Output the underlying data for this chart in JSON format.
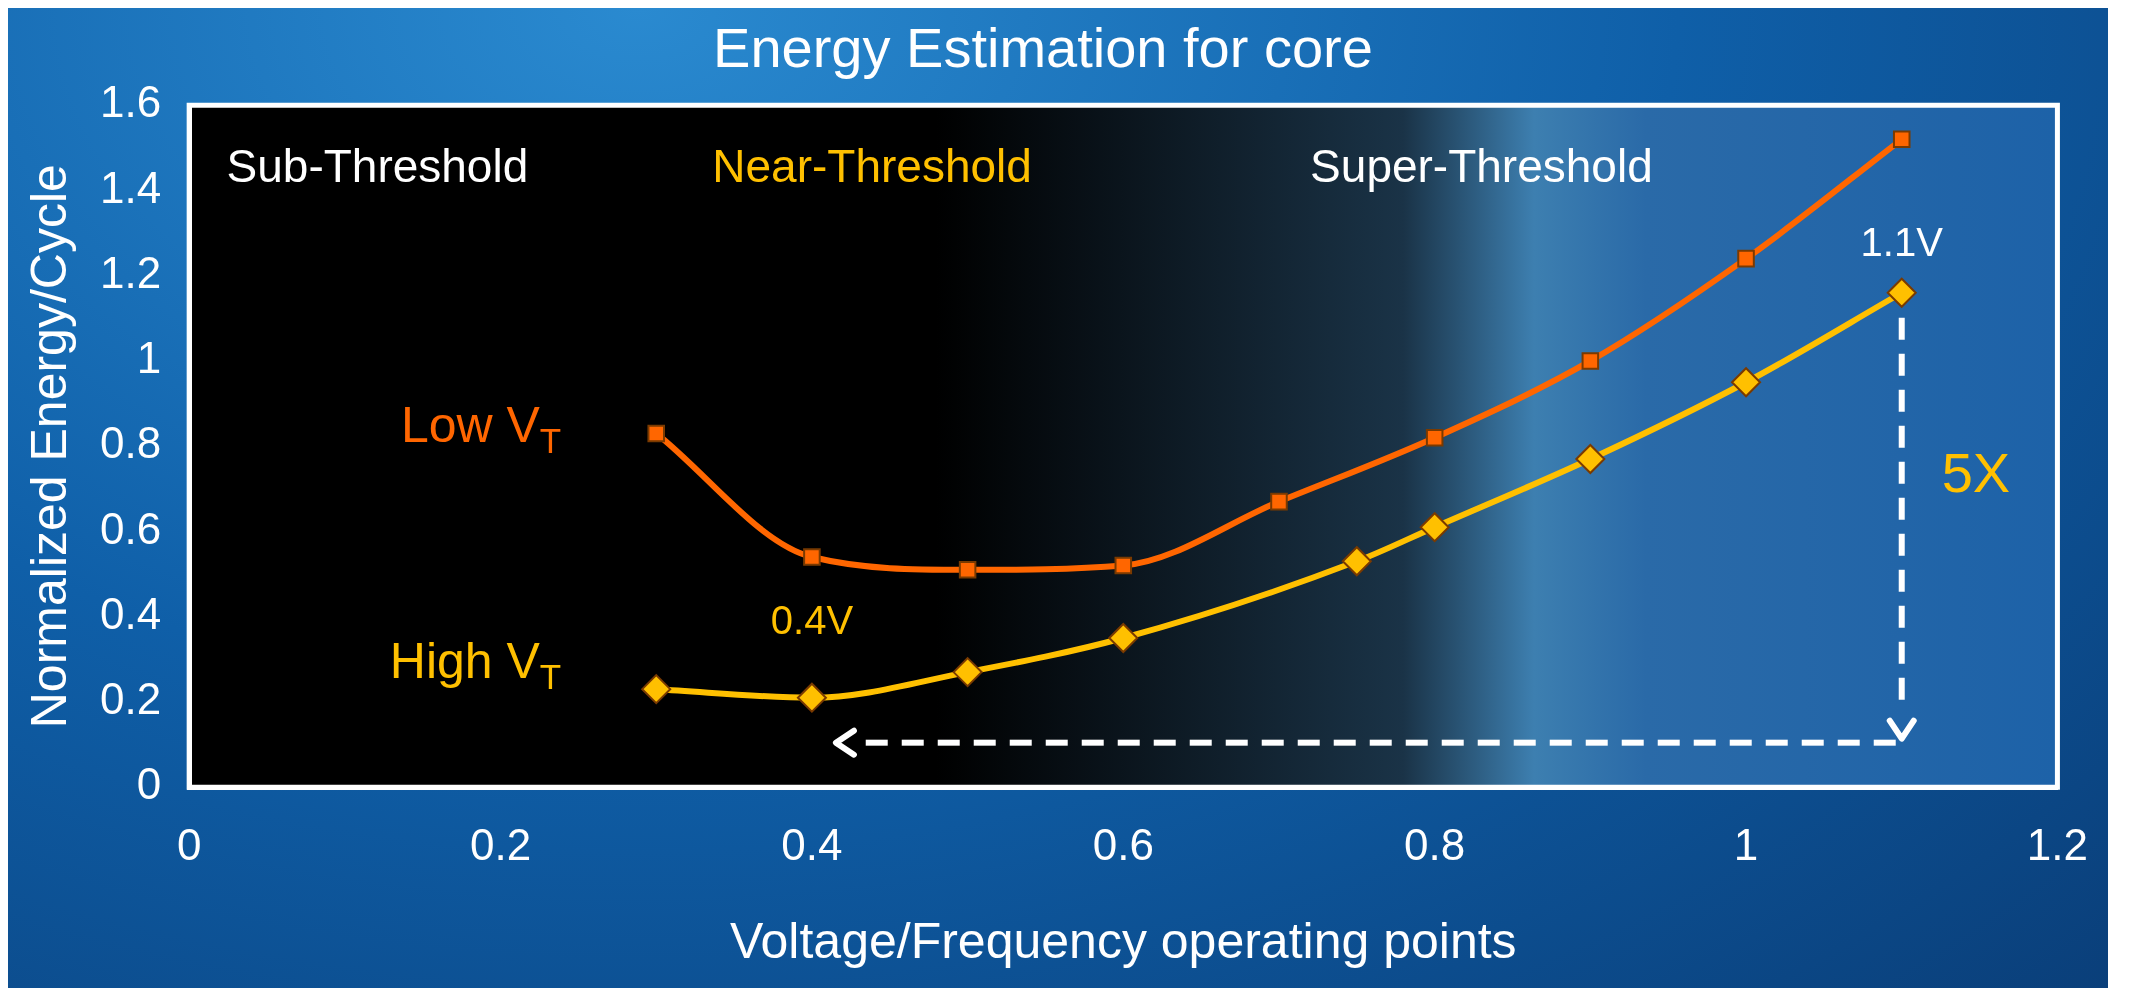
{
  "chart_data": {
    "type": "line",
    "title": "Energy Estimation for core",
    "xlabel": "Voltage/Frequency operating points",
    "ylabel": "Normalized Energy/Cycle",
    "xlim": [
      0,
      1.2
    ],
    "xticks": [
      0,
      0.2,
      0.4,
      0.6,
      0.8,
      1,
      1.2
    ],
    "ylim": [
      0,
      1.6
    ],
    "yticks": [
      0,
      0.2,
      0.4,
      0.6,
      0.8,
      1,
      1.2,
      1.4,
      1.6
    ],
    "grid": false,
    "legend": false,
    "series": [
      {
        "name": "Low V$_{T}$",
        "color": "#ff6600",
        "marker": "square",
        "x": [
          0.3,
          0.4,
          0.5,
          0.6,
          0.7,
          0.8,
          0.9,
          1,
          1.1
        ],
        "values": [
          0.83,
          0.54,
          0.51,
          0.52,
          0.67,
          0.82,
          1.0,
          1.24,
          1.52
        ]
      },
      {
        "name": "High V$_{T}$",
        "color": "#ffc000",
        "marker": "diamond",
        "x": [
          0.3,
          0.4,
          0.5,
          0.6,
          0.75,
          0.8,
          0.9,
          1,
          1.1
        ],
        "values": [
          0.23,
          0.21,
          0.27,
          0.35,
          0.53,
          0.61,
          0.77,
          0.95,
          1.16
        ]
      }
    ],
    "annotations": [
      "Sub-Threshold",
      "Near-Threshold",
      "Super-Threshold",
      {
        "text": "0.4V",
        "x": 0.4,
        "y": 0.21
      },
      {
        "text": "1.1V",
        "x": 1.1,
        "y": 1.16
      },
      "5X"
    ]
  }
}
